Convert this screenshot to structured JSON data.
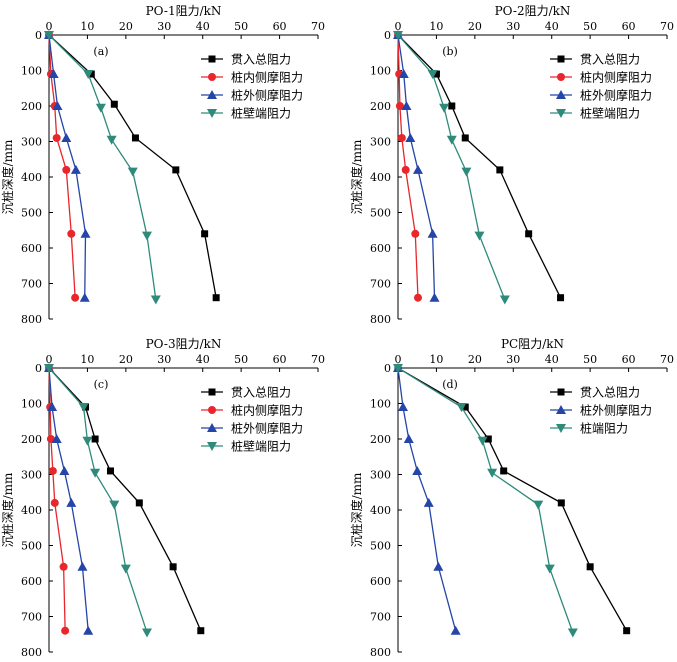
{
  "chart_data": [
    {
      "type": "line",
      "panel_label": "(a)",
      "title": "PO-1阻力/kN",
      "ylabel": "沉桩深度/mm",
      "xlim": [
        0,
        70
      ],
      "ylim": [
        0,
        800
      ],
      "xticks": [
        "0",
        "10",
        "20",
        "30",
        "40",
        "50",
        "60",
        "70"
      ],
      "yticks": [
        "0",
        "100",
        "200",
        "300",
        "400",
        "500",
        "600",
        "700",
        "800"
      ],
      "legend_position": "top-right",
      "grid": false,
      "series": [
        {
          "name": "贯入总阻力",
          "color": "#000000",
          "marker": "square",
          "x": [
            0,
            11,
            17,
            22.5,
            33,
            40.5,
            43.5
          ],
          "y": [
            0,
            110,
            195,
            290,
            380,
            560,
            740
          ]
        },
        {
          "name": "桩内侧摩阻力",
          "color": "#e8262b",
          "marker": "circle",
          "x": [
            0,
            0.5,
            1.5,
            2,
            4.5,
            5.8,
            6.8
          ],
          "y": [
            0,
            110,
            200,
            290,
            380,
            560,
            740
          ]
        },
        {
          "name": "桩外侧摩阻力",
          "color": "#2545a8",
          "marker": "triangle-up",
          "x": [
            0,
            1.2,
            2.2,
            4.5,
            7,
            9.5,
            9.3
          ],
          "y": [
            0,
            110,
            200,
            290,
            380,
            560,
            740
          ]
        },
        {
          "name": "桩壁端阻力",
          "color": "#2e8b7b",
          "marker": "triangle-down",
          "x": [
            0,
            10.2,
            13.5,
            16.3,
            21.8,
            25.5,
            27.8
          ],
          "y": [
            0,
            110,
            205,
            295,
            385,
            565,
            745
          ]
        }
      ]
    },
    {
      "type": "line",
      "panel_label": "(b)",
      "title": "PO-2阻力/kN",
      "ylabel": "沉桩深度/mm",
      "xlim": [
        0,
        70
      ],
      "ylim": [
        0,
        800
      ],
      "xticks": [
        "0",
        "10",
        "20",
        "30",
        "40",
        "50",
        "60",
        "70"
      ],
      "yticks": [
        "0",
        "100",
        "200",
        "300",
        "400",
        "500",
        "600",
        "700",
        "800"
      ],
      "legend_position": "top-right",
      "grid": false,
      "series": [
        {
          "name": "贯入总阻力",
          "color": "#000000",
          "marker": "square",
          "x": [
            0,
            10,
            14,
            17.5,
            26.5,
            34,
            42.3
          ],
          "y": [
            0,
            110,
            200,
            290,
            380,
            560,
            740
          ]
        },
        {
          "name": "桩内侧摩阻力",
          "color": "#e8262b",
          "marker": "circle",
          "x": [
            0,
            0.3,
            0.5,
            1,
            2,
            4.5,
            5.2
          ],
          "y": [
            0,
            110,
            200,
            290,
            380,
            560,
            740
          ]
        },
        {
          "name": "桩外侧摩阻力",
          "color": "#2545a8",
          "marker": "triangle-up",
          "x": [
            0,
            1.5,
            2.2,
            3.2,
            5.2,
            9,
            9.5
          ],
          "y": [
            0,
            110,
            200,
            290,
            380,
            560,
            740
          ]
        },
        {
          "name": "桩壁端阻力",
          "color": "#2e8b7b",
          "marker": "triangle-down",
          "x": [
            0,
            9,
            12,
            14,
            17.8,
            21.2,
            27.8
          ],
          "y": [
            0,
            110,
            205,
            295,
            385,
            565,
            745
          ]
        }
      ]
    },
    {
      "type": "line",
      "panel_label": "(c)",
      "title": "PO-3阻力/kN",
      "ylabel": "沉桩深度/mm",
      "xlim": [
        0,
        70
      ],
      "ylim": [
        0,
        800
      ],
      "xticks": [
        "0",
        "10",
        "20",
        "30",
        "40",
        "50",
        "60",
        "70"
      ],
      "yticks": [
        "0",
        "100",
        "200",
        "300",
        "400",
        "500",
        "600",
        "700",
        "800"
      ],
      "legend_position": "top-right",
      "grid": false,
      "series": [
        {
          "name": "贯入总阻力",
          "color": "#000000",
          "marker": "square",
          "x": [
            0,
            9.5,
            12,
            16,
            23.5,
            32.3,
            39.5
          ],
          "y": [
            0,
            110,
            200,
            290,
            380,
            560,
            740
          ]
        },
        {
          "name": "桩内侧摩阻力",
          "color": "#e8262b",
          "marker": "circle",
          "x": [
            0,
            0.3,
            0.5,
            1,
            1.5,
            3.8,
            4.2
          ],
          "y": [
            0,
            110,
            200,
            290,
            380,
            560,
            740
          ]
        },
        {
          "name": "桩外侧摩阻力",
          "color": "#2545a8",
          "marker": "triangle-up",
          "x": [
            0,
            0.8,
            2,
            4,
            5.8,
            8.7,
            10.2
          ],
          "y": [
            0,
            110,
            200,
            290,
            380,
            560,
            740
          ]
        },
        {
          "name": "桩壁端阻力",
          "color": "#2e8b7b",
          "marker": "triangle-down",
          "x": [
            0,
            9,
            10,
            12,
            17,
            20,
            25.5
          ],
          "y": [
            0,
            110,
            205,
            295,
            385,
            565,
            745
          ]
        }
      ]
    },
    {
      "type": "line",
      "panel_label": "(d)",
      "title": "PC阻力/kN",
      "ylabel": "沉桩深度/mm",
      "xlim": [
        0,
        70
      ],
      "ylim": [
        0,
        800
      ],
      "xticks": [
        "0",
        "10",
        "20",
        "30",
        "40",
        "50",
        "60",
        "70"
      ],
      "yticks": [
        "0",
        "100",
        "200",
        "300",
        "400",
        "500",
        "600",
        "700",
        "800"
      ],
      "legend_position": "top-right",
      "grid": false,
      "series": [
        {
          "name": "贯入总阻力",
          "color": "#000000",
          "marker": "square",
          "x": [
            0,
            17.5,
            23.5,
            27.5,
            42.5,
            50,
            59.5
          ],
          "y": [
            0,
            110,
            200,
            290,
            380,
            560,
            740
          ]
        },
        {
          "name": "桩外侧摩阻力",
          "color": "#2545a8",
          "marker": "triangle-up",
          "x": [
            0,
            1.3,
            2.8,
            5,
            8,
            10.5,
            15
          ],
          "y": [
            0,
            110,
            200,
            290,
            380,
            560,
            740
          ]
        },
        {
          "name": "桩端阻力",
          "color": "#2e8b7b",
          "marker": "triangle-down",
          "x": [
            0,
            16.5,
            22,
            24.5,
            36.5,
            39.5,
            45.5
          ],
          "y": [
            0,
            110,
            205,
            295,
            385,
            565,
            745
          ]
        }
      ]
    }
  ]
}
